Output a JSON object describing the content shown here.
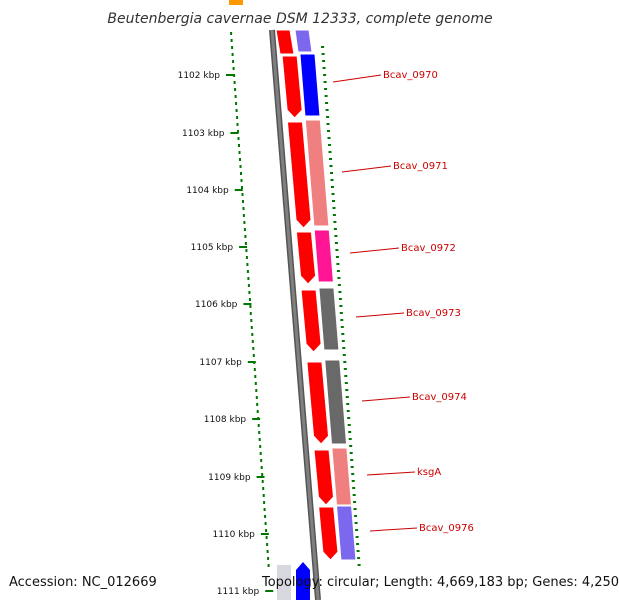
{
  "title": "Beutenbergia cavernae DSM 12333, complete genome",
  "accession": "Accession: NC_012669",
  "topology": "Topology: circular; Length: 4,669,183 bp; Genes: 4,250",
  "ticks": [
    "1102 kbp",
    "1103 kbp",
    "1104 kbp",
    "1105 kbp",
    "1106 kbp",
    "1107 kbp",
    "1108 kbp",
    "1109 kbp",
    "1110 kbp",
    "1111 kbp"
  ],
  "genes": [
    {
      "label": "Bcav_0970",
      "color": "#0000ff"
    },
    {
      "label": "Bcav_0971",
      "color": "#f08080"
    },
    {
      "label": "Bcav_0972",
      "color": "#ff1493"
    },
    {
      "label": "Bcav_0973",
      "color": "#696969"
    },
    {
      "label": "Bcav_0974",
      "color": "#696969"
    },
    {
      "label": "ksgA",
      "color": "#f08080"
    },
    {
      "label": "Bcav_0976",
      "color": "#7b68ee"
    }
  ],
  "colors": {
    "cds": "#ff0000",
    "backbone": "#808080",
    "gc_skew": "#007700",
    "label": "#cc0000"
  }
}
